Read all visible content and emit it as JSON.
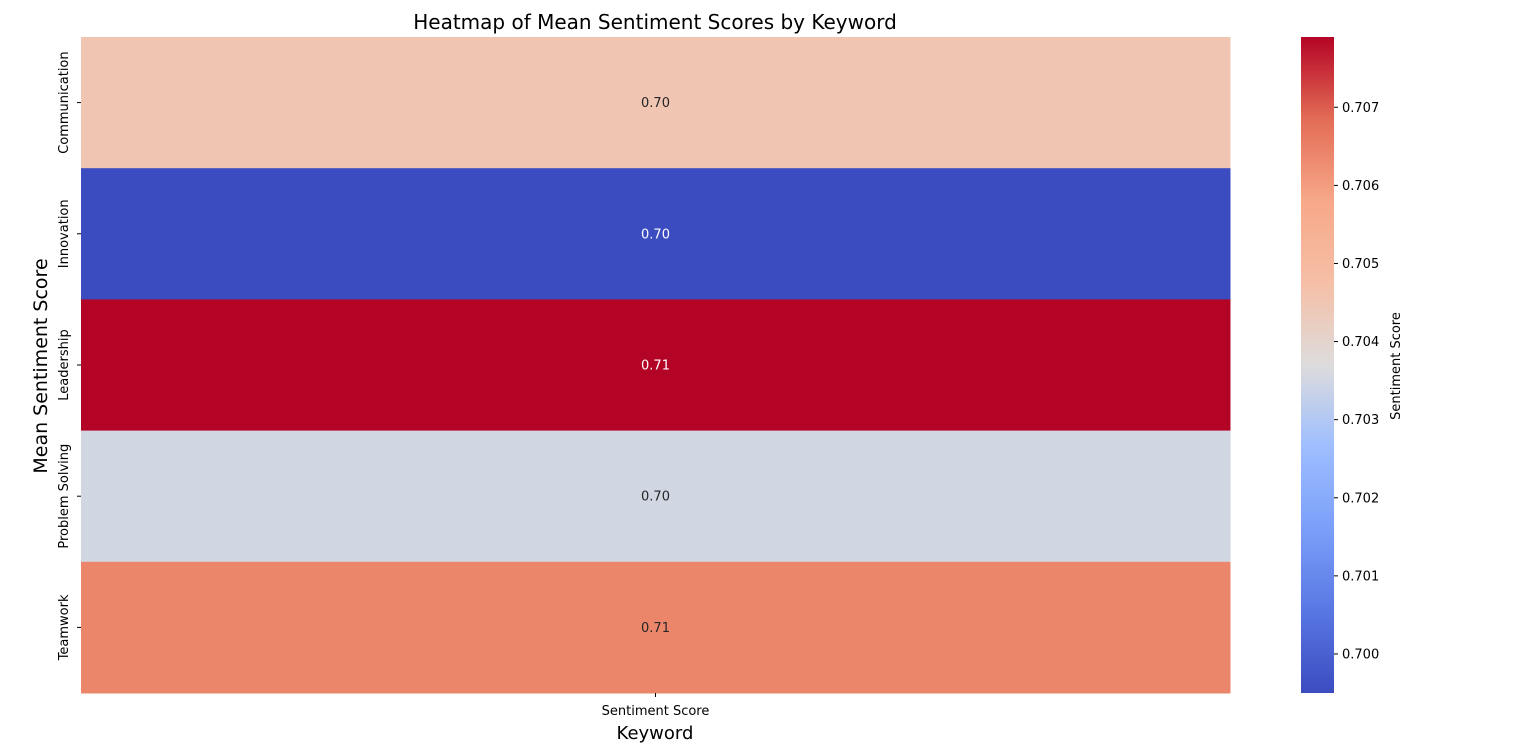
{
  "chart_data": {
    "type": "heatmap",
    "title": "Heatmap of Mean Sentiment Scores by Keyword",
    "xlabel": "Keyword",
    "ylabel": "Mean Sentiment Score",
    "columns": [
      "Sentiment Score"
    ],
    "rows": [
      "Communication",
      "Innovation",
      "Leadership",
      "Problem Solving",
      "Teamwork"
    ],
    "values": [
      [
        0.7045
      ],
      [
        0.6995
      ],
      [
        0.7079
      ],
      [
        0.7035
      ],
      [
        0.7064
      ]
    ],
    "annotations": [
      [
        "0.70"
      ],
      [
        "0.70"
      ],
      [
        "0.71"
      ],
      [
        "0.70"
      ],
      [
        "0.71"
      ]
    ],
    "colormap": "coolwarm",
    "value_range": [
      0.6995,
      0.7079
    ],
    "colorbar": {
      "label": "Sentiment Score",
      "ticks": [
        0.7,
        0.701,
        0.702,
        0.703,
        0.704,
        0.705,
        0.706,
        0.707
      ],
      "tick_labels": [
        "0.700",
        "0.701",
        "0.702",
        "0.703",
        "0.704",
        "0.705",
        "0.706",
        "0.707"
      ]
    }
  }
}
